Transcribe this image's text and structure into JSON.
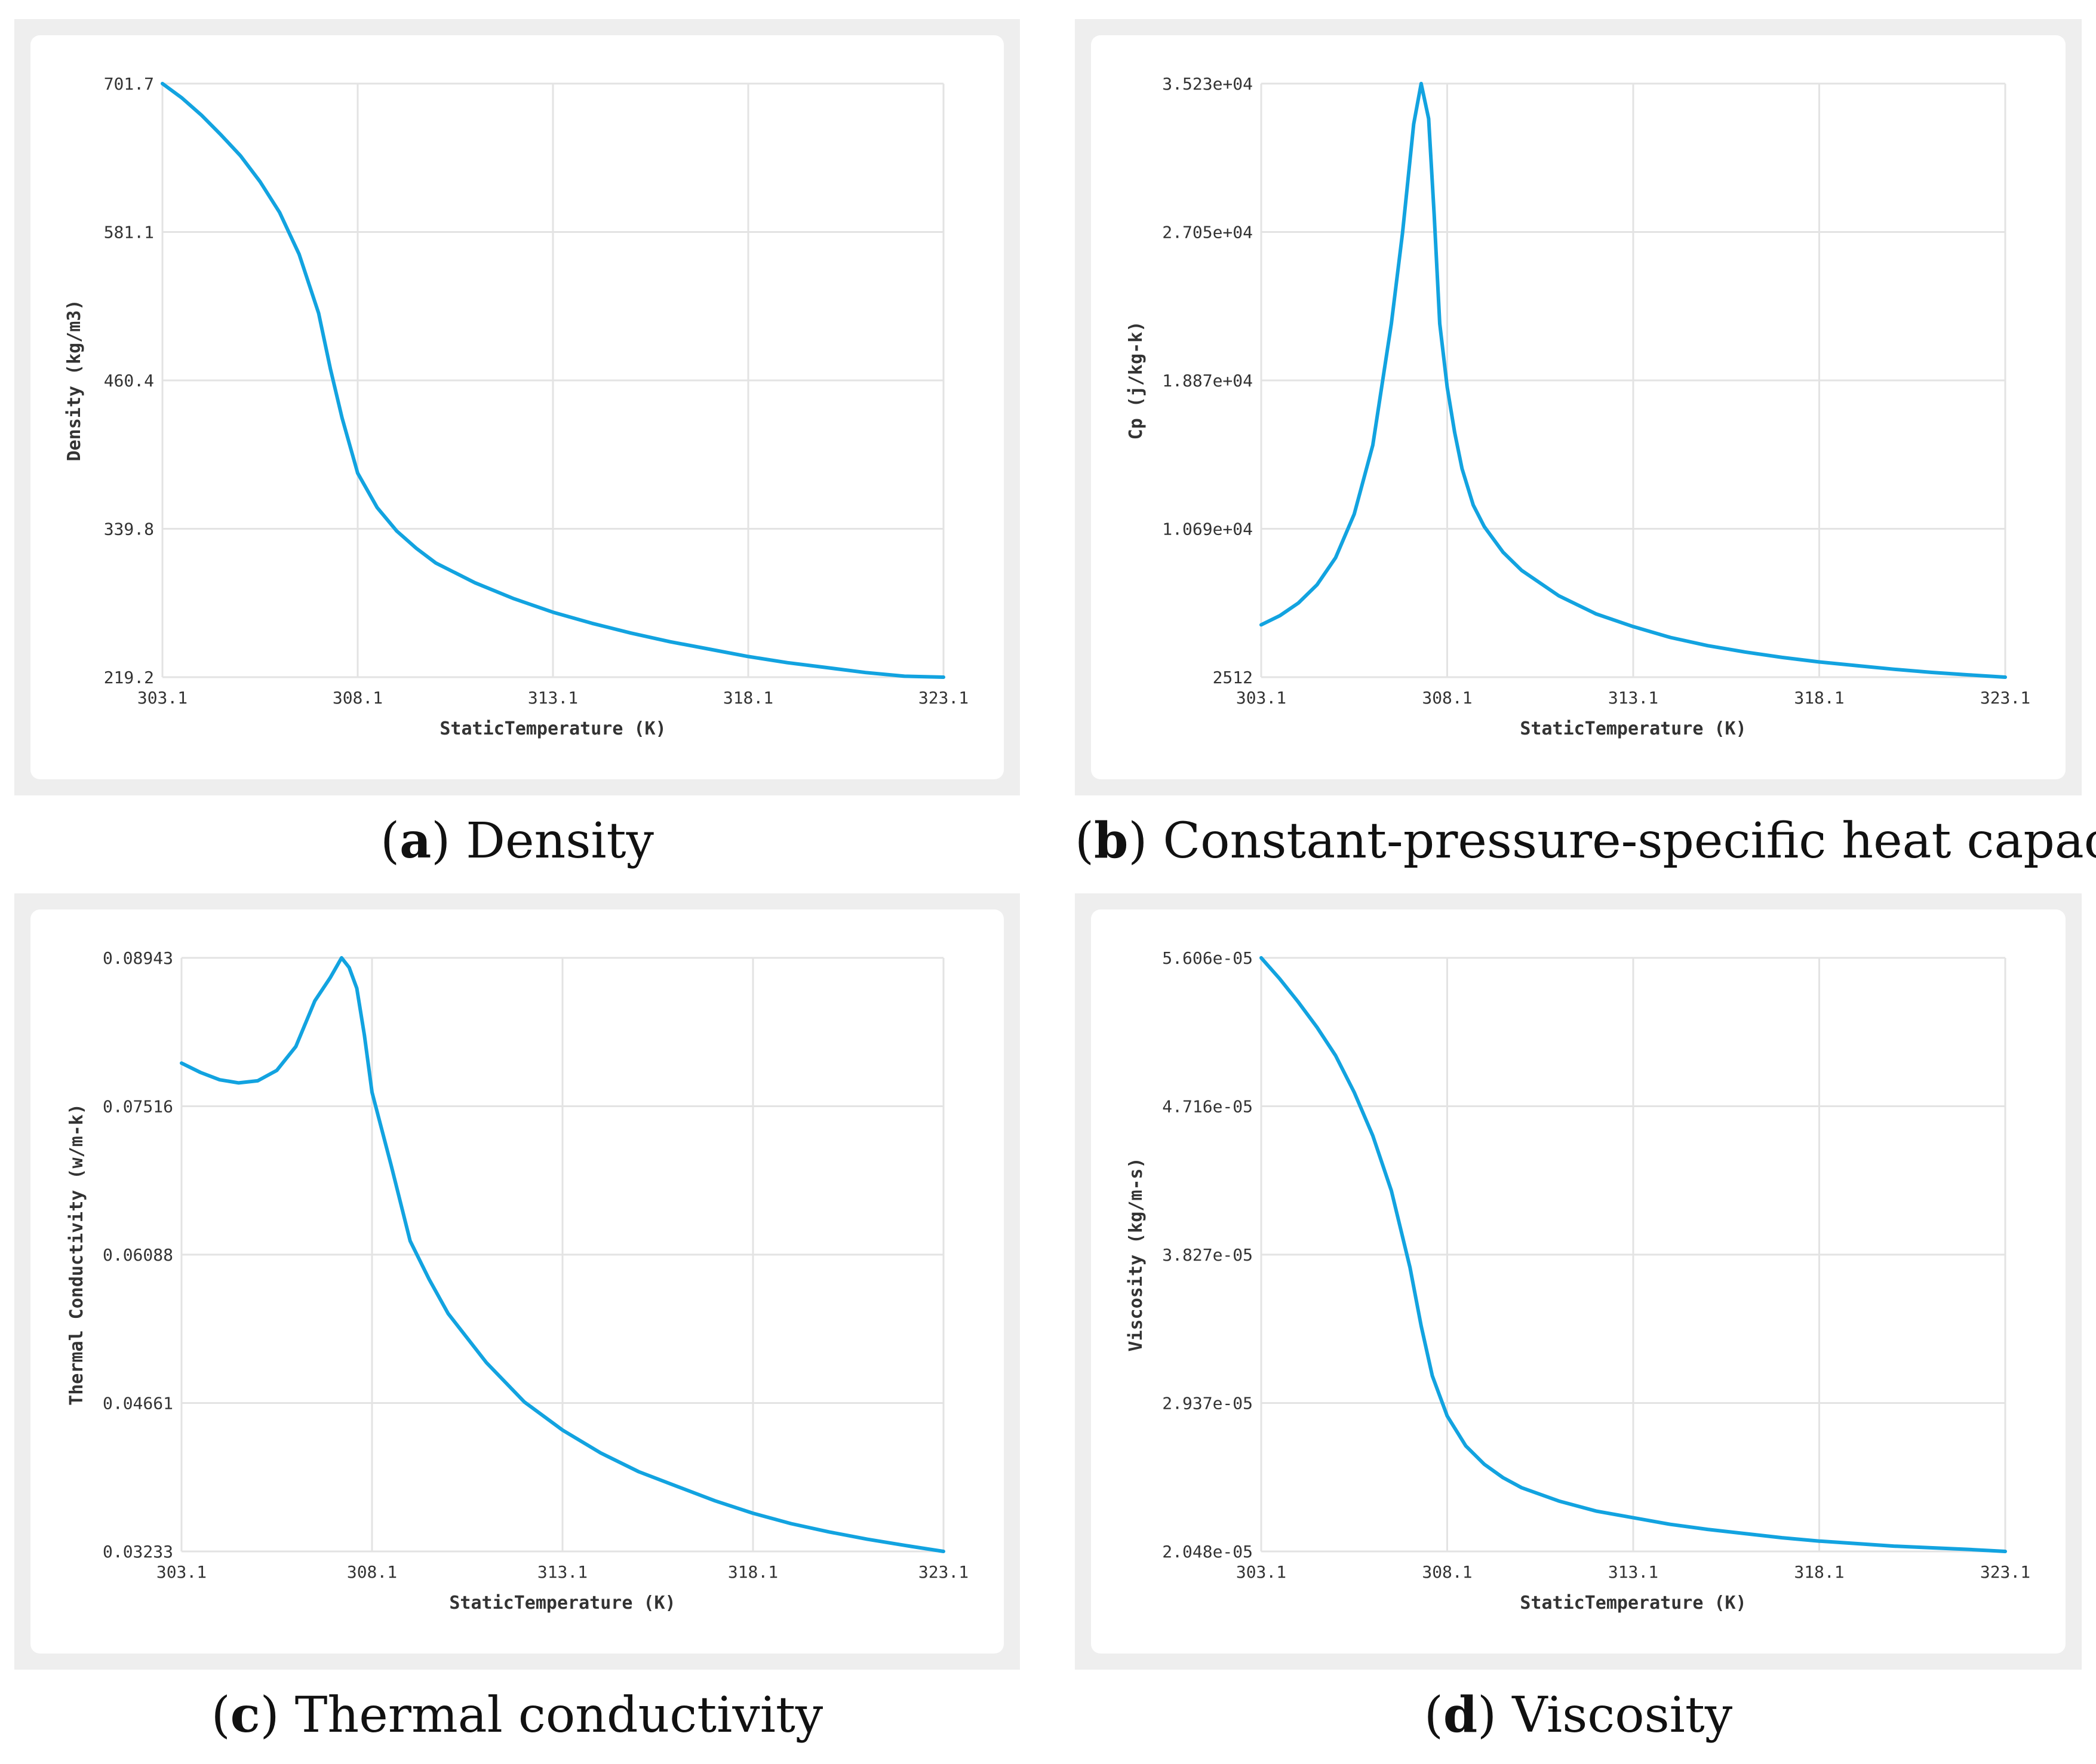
{
  "colors": {
    "series": "#12a3e0",
    "panel_background": "#eeeeee",
    "plot_background": "#ffffff",
    "grid": "#e3e3e3"
  },
  "chart_data": [
    {
      "id": "a",
      "type": "line",
      "caption": {
        "letter": "a",
        "text": "Density"
      },
      "xlabel": "StaticTemperature (K)",
      "ylabel": "Density (kg/m3)",
      "xlim": [
        303.1,
        323.1
      ],
      "ylim": [
        219.2,
        701.7
      ],
      "xticks": [
        "303.1",
        "308.1",
        "313.1",
        "318.1",
        "323.1"
      ],
      "yticks": [
        "219.2",
        "339.8",
        "460.4",
        "581.1",
        "701.7"
      ],
      "x": [
        303.1,
        303.6,
        304.1,
        304.6,
        305.1,
        305.6,
        306.1,
        306.6,
        307.1,
        307.4,
        307.7,
        308.1,
        308.6,
        309.1,
        309.6,
        310.1,
        311.1,
        312.1,
        313.1,
        314.1,
        315.1,
        316.1,
        317.1,
        318.1,
        319.1,
        320.1,
        321.1,
        322.1,
        323.1
      ],
      "y": [
        701.7,
        690,
        676,
        660,
        643,
        622,
        597,
        563,
        515,
        470,
        430,
        385,
        357,
        338,
        324,
        312,
        296,
        283,
        272,
        263,
        255,
        248,
        242,
        236,
        231,
        227,
        223,
        220,
        219.2
      ]
    },
    {
      "id": "b",
      "type": "line",
      "caption": {
        "letter": "b",
        "text": "Constant-pressure-specific heat capacity"
      },
      "xlabel": "StaticTemperature (K)",
      "ylabel": "Cp (j/kg-k)",
      "xlim": [
        303.1,
        323.1
      ],
      "ylim": [
        2512,
        35230
      ],
      "xticks": [
        "303.1",
        "308.1",
        "313.1",
        "318.1",
        "323.1"
      ],
      "yticks": [
        "2512",
        "1.069e+04",
        "1.887e+04",
        "2.705e+04",
        "3.523e+04"
      ],
      "x": [
        303.1,
        303.6,
        304.1,
        304.6,
        305.1,
        305.6,
        306.1,
        306.6,
        306.9,
        307.2,
        307.4,
        307.6,
        307.75,
        307.9,
        308.1,
        308.3,
        308.5,
        308.8,
        309.1,
        309.6,
        310.1,
        311.1,
        312.1,
        313.1,
        314.1,
        315.1,
        316.1,
        317.1,
        318.1,
        319.1,
        320.1,
        321.1,
        322.1,
        323.1
      ],
      "y": [
        5400,
        5900,
        6600,
        7600,
        9100,
        11500,
        15300,
        22000,
        27000,
        33000,
        35230,
        33300,
        28000,
        22000,
        18500,
        16000,
        14000,
        12000,
        10800,
        9400,
        8400,
        7000,
        6000,
        5300,
        4700,
        4250,
        3900,
        3600,
        3350,
        3150,
        2950,
        2780,
        2640,
        2512
      ]
    },
    {
      "id": "c",
      "type": "line",
      "caption": {
        "letter": "c",
        "text": "Thermal conductivity"
      },
      "xlabel": "StaticTemperature (K)",
      "ylabel": "Thermal Conductivity (w/m-k)",
      "xlim": [
        303.1,
        323.1
      ],
      "ylim": [
        0.03233,
        0.08943
      ],
      "xticks": [
        "303.1",
        "308.1",
        "313.1",
        "318.1",
        "323.1"
      ],
      "yticks": [
        "0.03233",
        "0.04661",
        "0.06088",
        "0.07516",
        "0.08943"
      ],
      "x": [
        303.1,
        303.6,
        304.1,
        304.6,
        305.1,
        305.6,
        306.1,
        306.6,
        307.0,
        307.3,
        307.5,
        307.7,
        307.9,
        308.1,
        308.6,
        309.1,
        309.6,
        310.1,
        311.1,
        312.1,
        313.1,
        314.1,
        315.1,
        316.1,
        317.1,
        318.1,
        319.1,
        320.1,
        321.1,
        322.1,
        323.1
      ],
      "y": [
        0.0793,
        0.0784,
        0.0777,
        0.0774,
        0.0776,
        0.0786,
        0.0809,
        0.0853,
        0.0875,
        0.08943,
        0.0885,
        0.0865,
        0.082,
        0.0765,
        0.0695,
        0.0622,
        0.0585,
        0.0552,
        0.0505,
        0.0467,
        0.044,
        0.0418,
        0.04,
        0.0386,
        0.0372,
        0.036,
        0.035,
        0.0342,
        0.0335,
        0.0329,
        0.03233
      ]
    },
    {
      "id": "d",
      "type": "line",
      "caption": {
        "letter": "d",
        "text": "Viscosity"
      },
      "xlabel": "StaticTemperature (K)",
      "ylabel": "Viscosity (kg/m-s)",
      "xlim": [
        303.1,
        323.1
      ],
      "ylim": [
        2.048e-05,
        5.606e-05
      ],
      "xticks": [
        "303.1",
        "308.1",
        "313.1",
        "318.1",
        "323.1"
      ],
      "yticks": [
        "2.048e-05",
        "2.937e-05",
        "3.827e-05",
        "4.716e-05",
        "5.606e-05"
      ],
      "x": [
        303.1,
        303.6,
        304.1,
        304.6,
        305.1,
        305.6,
        306.1,
        306.6,
        307.1,
        307.4,
        307.7,
        308.1,
        308.6,
        309.1,
        309.6,
        310.1,
        311.1,
        312.1,
        313.1,
        314.1,
        315.1,
        316.1,
        317.1,
        318.1,
        319.1,
        320.1,
        321.1,
        322.1,
        323.1
      ],
      "y": [
        5.606e-05,
        5.48e-05,
        5.34e-05,
        5.19e-05,
        5.02e-05,
        4.8e-05,
        4.54e-05,
        4.21e-05,
        3.75e-05,
        3.4e-05,
        3.1e-05,
        2.86e-05,
        2.68e-05,
        2.57e-05,
        2.49e-05,
        2.43e-05,
        2.35e-05,
        2.29e-05,
        2.25e-05,
        2.21e-05,
        2.18e-05,
        2.155e-05,
        2.13e-05,
        2.11e-05,
        2.095e-05,
        2.08e-05,
        2.07e-05,
        2.06e-05,
        2.048e-05
      ]
    }
  ]
}
